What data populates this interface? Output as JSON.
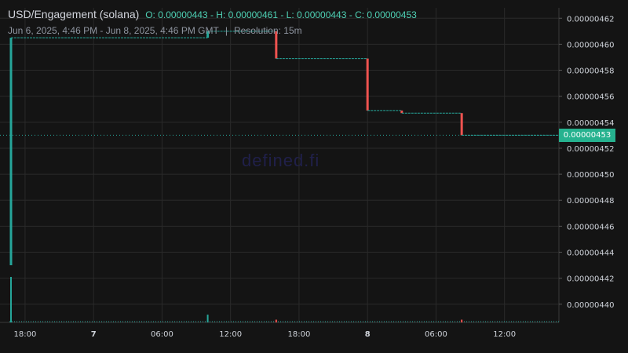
{
  "header": {
    "pair": "USD/Engagement (solana)",
    "ohlc_text": "O: 0.00000443 - H: 0.00000461 - L: 0.00000443 - C: 0.00000453",
    "range": "Jun 6, 2025, 4:46 PM - Jun 8, 2025, 4:46 PM GMT",
    "separator": "|",
    "resolution": "Resolution: 15m"
  },
  "watermark": "defined.fi",
  "last_price_label": "0.00000453",
  "colors": {
    "up": "#26a69a",
    "down": "#ef5350",
    "badge": "#26b28f",
    "background": "#141414"
  },
  "chart_data": {
    "type": "candlestick",
    "ylim": [
      4.386e-06,
      4.628e-06
    ],
    "yticks": [
      "0.00000462",
      "0.00000460",
      "0.00000458",
      "0.00000456",
      "0.00000454",
      "0.00000452",
      "0.00000450",
      "0.00000448",
      "0.00000446",
      "0.00000444",
      "0.00000442",
      "0.00000440"
    ],
    "xticks": [
      {
        "label": "18:00",
        "bold": false
      },
      {
        "label": "7",
        "bold": true
      },
      {
        "label": "06:00",
        "bold": false
      },
      {
        "label": "12:00",
        "bold": false
      },
      {
        "label": "18:00",
        "bold": false
      },
      {
        "label": "8",
        "bold": true
      },
      {
        "label": "06:00",
        "bold": false
      },
      {
        "label": "12:00",
        "bold": false
      }
    ],
    "segments": [
      {
        "x": "Jun 6 16:46",
        "from": 4.43e-06,
        "to": 4.605e-06,
        "direction": "up",
        "kind": "candle"
      },
      {
        "x": "Jun 6 16:46 - Jun 7 10:00",
        "from": 4.605e-06,
        "to": 4.605e-06,
        "kind": "flat"
      },
      {
        "x": "Jun 7 10:00",
        "from": 4.605e-06,
        "to": 4.61e-06,
        "direction": "up",
        "kind": "candle"
      },
      {
        "x": "Jun 7 10:00 - Jun 7 16:00",
        "from": 4.61e-06,
        "to": 4.61e-06,
        "kind": "flat"
      },
      {
        "x": "Jun 7 16:00",
        "from": 4.61e-06,
        "to": 4.589e-06,
        "direction": "down",
        "kind": "candle"
      },
      {
        "x": "Jun 7 16:00 - Jun 8 00:00",
        "from": 4.589e-06,
        "to": 4.589e-06,
        "kind": "flat"
      },
      {
        "x": "Jun 8 00:00",
        "from": 4.589e-06,
        "to": 4.549e-06,
        "direction": "down",
        "kind": "candle"
      },
      {
        "x": "Jun 8 00:00 - Jun 8 03:00",
        "from": 4.549e-06,
        "to": 4.549e-06,
        "kind": "flat"
      },
      {
        "x": "Jun 8 03:00",
        "from": 4.549e-06,
        "to": 4.547e-06,
        "direction": "down",
        "kind": "candle"
      },
      {
        "x": "Jun 8 03:00 - Jun 8 08:15",
        "from": 4.547e-06,
        "to": 4.547e-06,
        "kind": "flat"
      },
      {
        "x": "Jun 8 08:15",
        "from": 4.547e-06,
        "to": 4.53e-06,
        "direction": "down",
        "kind": "candle"
      },
      {
        "x": "Jun 8 08:15 - Jun 8 16:46",
        "from": 4.53e-06,
        "to": 4.53e-06,
        "kind": "flat"
      }
    ],
    "last_price": 4.53e-06,
    "volume": [
      {
        "x": "Jun 6 16:46",
        "level": 1.0,
        "direction": "up"
      },
      {
        "x": "Jun 7 10:00",
        "level": 0.17,
        "direction": "up"
      },
      {
        "x": "Jun 7 16:00",
        "level": 0.06,
        "direction": "down"
      },
      {
        "x": "Jun 8 08:15",
        "level": 0.06,
        "direction": "down"
      }
    ],
    "grid": true
  }
}
